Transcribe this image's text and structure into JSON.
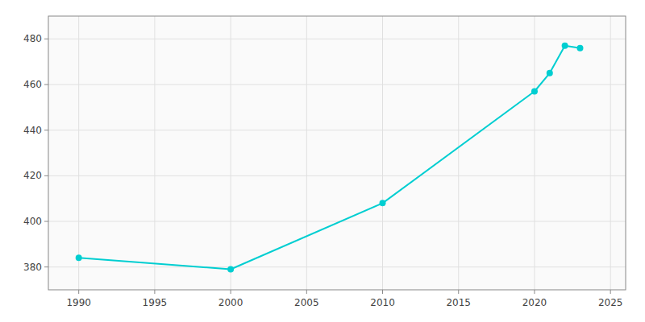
{
  "chart_data": {
    "type": "line",
    "x": [
      1990,
      2000,
      2010,
      2020,
      2021,
      2022,
      2023
    ],
    "values": [
      384,
      379,
      408,
      457,
      465,
      477,
      476
    ],
    "color": "#00CED1",
    "marker": "circle",
    "xlim": [
      1988,
      2026
    ],
    "ylim": [
      370,
      490
    ],
    "xticks": [
      1990,
      1995,
      2000,
      2005,
      2010,
      2015,
      2020,
      2025
    ],
    "yticks": [
      380,
      400,
      420,
      440,
      460,
      480
    ],
    "grid": true
  }
}
